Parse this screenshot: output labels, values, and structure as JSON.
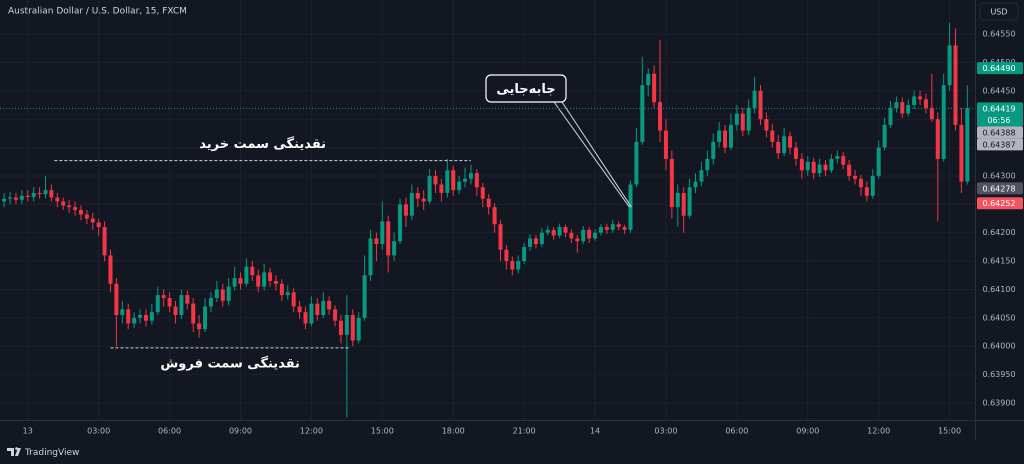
{
  "chart_data": {
    "type": "candlestick",
    "title": "Australian Dollar / U.S. Dollar, 15, FXCM",
    "currency": "USD",
    "up_color": "#089981",
    "down_color": "#f23645",
    "grid": true,
    "open": [
      0.64255,
      0.6426,
      0.64262,
      0.64258,
      0.64265,
      0.64263,
      0.6427,
      0.64268,
      0.64275,
      0.64262,
      0.64255,
      0.64248,
      0.64245,
      0.6424,
      0.64232,
      0.64225,
      0.64218,
      0.6421,
      0.6416,
      0.6411,
      0.64055,
      0.64065,
      0.6404,
      0.6405,
      0.64055,
      0.64045,
      0.6406,
      0.6409,
      0.64085,
      0.6407,
      0.64055,
      0.6409,
      0.64075,
      0.6404,
      0.6403,
      0.6407,
      0.64085,
      0.641,
      0.6408,
      0.64105,
      0.6412,
      0.6411,
      0.6414,
      0.64125,
      0.64105,
      0.6413,
      0.64115,
      0.6411,
      0.6409,
      0.64095,
      0.6407,
      0.6406,
      0.6404,
      0.64075,
      0.64055,
      0.6408,
      0.64065,
      0.64045,
      0.6402,
      0.64055,
      0.6401,
      0.6405,
      0.64125,
      0.6419,
      0.6418,
      0.6422,
      0.6416,
      0.64185,
      0.6425,
      0.6423,
      0.6427,
      0.6426,
      0.64255,
      0.643,
      0.64285,
      0.6427,
      0.6431,
      0.64275,
      0.6429,
      0.64295,
      0.64305,
      0.6428,
      0.6426,
      0.64245,
      0.64215,
      0.6417,
      0.6415,
      0.64135,
      0.6415,
      0.64175,
      0.6419,
      0.6418,
      0.642,
      0.64205,
      0.64195,
      0.6421,
      0.642,
      0.6419,
      0.64185,
      0.64205,
      0.6419,
      0.642,
      0.6421,
      0.64205,
      0.64215,
      0.6421,
      0.64205,
      0.64285,
      0.6436,
      0.6446,
      0.6448,
      0.6443,
      0.6438,
      0.6433,
      0.64245,
      0.6427,
      0.6423,
      0.6428,
      0.6429,
      0.6431,
      0.6433,
      0.6436,
      0.6438,
      0.6435,
      0.6439,
      0.6441,
      0.6438,
      0.6442,
      0.6445,
      0.644,
      0.6438,
      0.6436,
      0.6434,
      0.6437,
      0.6435,
      0.6433,
      0.6431,
      0.64325,
      0.64305,
      0.6432,
      0.6431,
      0.6433,
      0.64335,
      0.6432,
      0.643,
      0.64295,
      0.6428,
      0.64265,
      0.643,
      0.6435,
      0.6439,
      0.6442,
      0.6443,
      0.6441,
      0.64425,
      0.6444,
      0.64435,
      0.6442,
      0.644,
      0.6433,
      0.6446,
      0.6453,
      0.6439,
      0.6429
    ],
    "high": [
      0.6427,
      0.64272,
      0.6427,
      0.64275,
      0.64275,
      0.6428,
      0.6428,
      0.643,
      0.64285,
      0.6427,
      0.64262,
      0.64258,
      0.64255,
      0.64248,
      0.6424,
      0.64235,
      0.64225,
      0.6422,
      0.6417,
      0.6412,
      0.6408,
      0.64075,
      0.6406,
      0.64065,
      0.64065,
      0.64075,
      0.64105,
      0.641,
      0.64095,
      0.6408,
      0.641,
      0.64098,
      0.64085,
      0.64055,
      0.64085,
      0.64095,
      0.64115,
      0.6411,
      0.6412,
      0.6414,
      0.6413,
      0.64155,
      0.6415,
      0.64135,
      0.64145,
      0.64138,
      0.64125,
      0.64118,
      0.64108,
      0.64102,
      0.6408,
      0.6407,
      0.64088,
      0.64085,
      0.64095,
      0.64088,
      0.64072,
      0.64055,
      0.6409,
      0.64065,
      0.6406,
      0.6416,
      0.64205,
      0.642,
      0.64255,
      0.6423,
      0.642,
      0.6426,
      0.64262,
      0.64285,
      0.6428,
      0.64275,
      0.64312,
      0.6431,
      0.64295,
      0.6433,
      0.64318,
      0.643,
      0.64315,
      0.6432,
      0.64312,
      0.64288,
      0.64268,
      0.64252,
      0.64222,
      0.64178,
      0.64158,
      0.6416,
      0.64182,
      0.64198,
      0.64196,
      0.64208,
      0.64212,
      0.6421,
      0.64216,
      0.64214,
      0.64206,
      0.64196,
      0.64212,
      0.6421,
      0.64206,
      0.64215,
      0.64216,
      0.64222,
      0.6422,
      0.64214,
      0.64292,
      0.64385,
      0.6451,
      0.6449,
      0.64495,
      0.6454,
      0.644,
      0.64345,
      0.64285,
      0.6428,
      0.64295,
      0.64305,
      0.64325,
      0.64345,
      0.64375,
      0.64395,
      0.6439,
      0.6441,
      0.64425,
      0.6442,
      0.64435,
      0.64475,
      0.6446,
      0.64412,
      0.64392,
      0.64372,
      0.64385,
      0.64378,
      0.6436,
      0.6434,
      0.64335,
      0.64332,
      0.6433,
      0.64328,
      0.64338,
      0.64345,
      0.64342,
      0.64328,
      0.6431,
      0.64302,
      0.6429,
      0.64312,
      0.64362,
      0.64402,
      0.64432,
      0.6444,
      0.64438,
      0.64435,
      0.6445,
      0.6445,
      0.64445,
      0.6448,
      0.64412,
      0.6448,
      0.6457,
      0.6456,
      0.6442,
      0.6446
    ],
    "low": [
      0.64245,
      0.6425,
      0.6425,
      0.6425,
      0.64255,
      0.64255,
      0.6426,
      0.6426,
      0.64255,
      0.64245,
      0.6424,
      0.64235,
      0.6423,
      0.64222,
      0.64215,
      0.64205,
      0.64195,
      0.6415,
      0.64095,
      0.64,
      0.6404,
      0.6403,
      0.64032,
      0.6404,
      0.64035,
      0.64038,
      0.64055,
      0.6407,
      0.6406,
      0.6404,
      0.64048,
      0.64065,
      0.64025,
      0.64015,
      0.64025,
      0.6406,
      0.64078,
      0.6407,
      0.64072,
      0.64098,
      0.641,
      0.64105,
      0.64115,
      0.64095,
      0.64098,
      0.64105,
      0.64098,
      0.6408,
      0.64082,
      0.6406,
      0.64048,
      0.6403,
      0.64035,
      0.64045,
      0.6405,
      0.64055,
      0.64035,
      0.64005,
      0.63875,
      0.64,
      0.64005,
      0.64045,
      0.64115,
      0.6415,
      0.6417,
      0.6413,
      0.6415,
      0.6418,
      0.6421,
      0.64222,
      0.64245,
      0.6424,
      0.6425,
      0.6427,
      0.64255,
      0.64262,
      0.64265,
      0.64268,
      0.6428,
      0.64285,
      0.64265,
      0.64245,
      0.64232,
      0.642,
      0.6415,
      0.64135,
      0.64125,
      0.64128,
      0.64145,
      0.64168,
      0.64172,
      0.64175,
      0.64195,
      0.64188,
      0.6419,
      0.64192,
      0.64182,
      0.64165,
      0.6418,
      0.64182,
      0.64186,
      0.64195,
      0.64198,
      0.642,
      0.64204,
      0.64198,
      0.642,
      0.6428,
      0.64355,
      0.6444,
      0.6442,
      0.6436,
      0.6431,
      0.64225,
      0.6421,
      0.642,
      0.64225,
      0.6427,
      0.64282,
      0.643,
      0.6432,
      0.6435,
      0.6434,
      0.64345,
      0.6438,
      0.6437,
      0.64372,
      0.6441,
      0.6439,
      0.64368,
      0.6435,
      0.6433,
      0.64335,
      0.64338,
      0.64318,
      0.64295,
      0.643,
      0.64295,
      0.64298,
      0.643,
      0.64305,
      0.64322,
      0.64312,
      0.64292,
      0.64285,
      0.64265,
      0.64255,
      0.6426,
      0.64295,
      0.64345,
      0.64385,
      0.64412,
      0.64402,
      0.64405,
      0.64418,
      0.64425,
      0.6441,
      0.64395,
      0.6422,
      0.64325,
      0.6445,
      0.6438,
      0.6427,
      0.64285
    ],
    "close": [
      0.6426,
      0.64262,
      0.64258,
      0.64265,
      0.64263,
      0.6427,
      0.64268,
      0.64275,
      0.64262,
      0.64255,
      0.64248,
      0.64245,
      0.6424,
      0.64232,
      0.64225,
      0.64218,
      0.6421,
      0.6416,
      0.6411,
      0.64055,
      0.64065,
      0.6404,
      0.6405,
      0.64055,
      0.64045,
      0.6406,
      0.6409,
      0.64085,
      0.6407,
      0.64055,
      0.6409,
      0.64075,
      0.6404,
      0.6403,
      0.6407,
      0.64085,
      0.641,
      0.6408,
      0.64105,
      0.6412,
      0.6411,
      0.6414,
      0.64125,
      0.64105,
      0.6413,
      0.64115,
      0.6411,
      0.6409,
      0.64095,
      0.6407,
      0.6406,
      0.6404,
      0.64075,
      0.64055,
      0.6408,
      0.64065,
      0.64045,
      0.6402,
      0.64055,
      0.6401,
      0.6405,
      0.64125,
      0.6419,
      0.6418,
      0.6422,
      0.6416,
      0.64185,
      0.6425,
      0.6423,
      0.6427,
      0.6426,
      0.64255,
      0.643,
      0.64285,
      0.6427,
      0.6431,
      0.64275,
      0.6429,
      0.64295,
      0.64305,
      0.6428,
      0.6426,
      0.64245,
      0.64215,
      0.6417,
      0.6415,
      0.64135,
      0.6415,
      0.64175,
      0.6419,
      0.6418,
      0.642,
      0.64205,
      0.64195,
      0.6421,
      0.642,
      0.6419,
      0.64185,
      0.64205,
      0.6419,
      0.642,
      0.6421,
      0.64205,
      0.64215,
      0.6421,
      0.64205,
      0.64285,
      0.6436,
      0.6446,
      0.6448,
      0.6443,
      0.6438,
      0.6433,
      0.64245,
      0.6427,
      0.6423,
      0.6428,
      0.6429,
      0.6431,
      0.6433,
      0.6436,
      0.6438,
      0.6435,
      0.6439,
      0.6441,
      0.6438,
      0.6442,
      0.6445,
      0.644,
      0.6438,
      0.6436,
      0.6434,
      0.6437,
      0.6435,
      0.6433,
      0.6431,
      0.64325,
      0.64305,
      0.6432,
      0.6431,
      0.6433,
      0.64335,
      0.6432,
      0.643,
      0.64295,
      0.6428,
      0.64265,
      0.643,
      0.6435,
      0.6439,
      0.6442,
      0.6443,
      0.6441,
      0.64425,
      0.6444,
      0.64435,
      0.6442,
      0.644,
      0.6433,
      0.6446,
      0.6453,
      0.6439,
      0.6429,
      0.64419
    ],
    "xlim": [
      -0.7,
      164.3
    ],
    "xticks": [
      {
        "value": 4,
        "label": "13"
      },
      {
        "value": 16,
        "label": "03:00"
      },
      {
        "value": 28,
        "label": "06:00"
      },
      {
        "value": 40,
        "label": "09:00"
      },
      {
        "value": 52,
        "label": "12:00"
      },
      {
        "value": 64,
        "label": "15:00"
      },
      {
        "value": 76,
        "label": "18:00"
      },
      {
        "value": 88,
        "label": "21:00"
      },
      {
        "value": 100,
        "label": "14"
      },
      {
        "value": 112,
        "label": "03:00"
      },
      {
        "value": 124,
        "label": "06:00"
      },
      {
        "value": 136,
        "label": "09:00"
      },
      {
        "value": 148,
        "label": "12:00"
      },
      {
        "value": 160,
        "label": "15:00"
      }
    ],
    "ylim": [
      0.6387,
      0.6461
    ],
    "yticks": [
      {
        "value": 0.639,
        "label": "0.63900"
      },
      {
        "value": 0.6395,
        "label": "0.63950"
      },
      {
        "value": 0.64,
        "label": "0.64000"
      },
      {
        "value": 0.6405,
        "label": "0.64050"
      },
      {
        "value": 0.641,
        "label": "0.64100"
      },
      {
        "value": 0.6415,
        "label": "0.64150"
      },
      {
        "value": 0.642,
        "label": "0.64200"
      },
      {
        "value": 0.6425,
        "label": "0.64250"
      },
      {
        "value": 0.643,
        "label": "0.64300"
      },
      {
        "value": 0.6435,
        "label": "0.64350"
      },
      {
        "value": 0.644,
        "label": "0.64400"
      },
      {
        "value": 0.6445,
        "label": "0.64450"
      },
      {
        "value": 0.645,
        "label": "0.64500"
      },
      {
        "value": 0.6455,
        "label": "0.64550"
      }
    ],
    "price_labels": [
      {
        "value": 0.6449,
        "label": "0.64490",
        "color": "#089981"
      },
      {
        "value": 0.64419,
        "label": "0.64419",
        "countdown": "06:56",
        "color": "#089981",
        "dotted_line": true
      },
      {
        "value": 0.64388,
        "label": "0.64388",
        "color": "#b2b5be"
      },
      {
        "value": 0.64387,
        "label": "0.64387",
        "color": "#b2b5be"
      },
      {
        "value": 0.64278,
        "label": "0.64278",
        "color": "#50535e"
      },
      {
        "value": 0.64252,
        "label": "0.64252",
        "color": "#f7525f"
      }
    ],
    "annotations": [
      {
        "text": "نقدینگی سمت خرید",
        "level": 0.64327,
        "from": 8.5,
        "to": 79,
        "side": "above"
      },
      {
        "text": "نقدینگی سمت فروش",
        "level": 0.63997,
        "from": 18,
        "to": 58.5,
        "side": "below"
      }
    ],
    "callout": {
      "text": "جابه‌جایی",
      "at": 106
    }
  },
  "footer": {
    "brand": "TradingView"
  }
}
